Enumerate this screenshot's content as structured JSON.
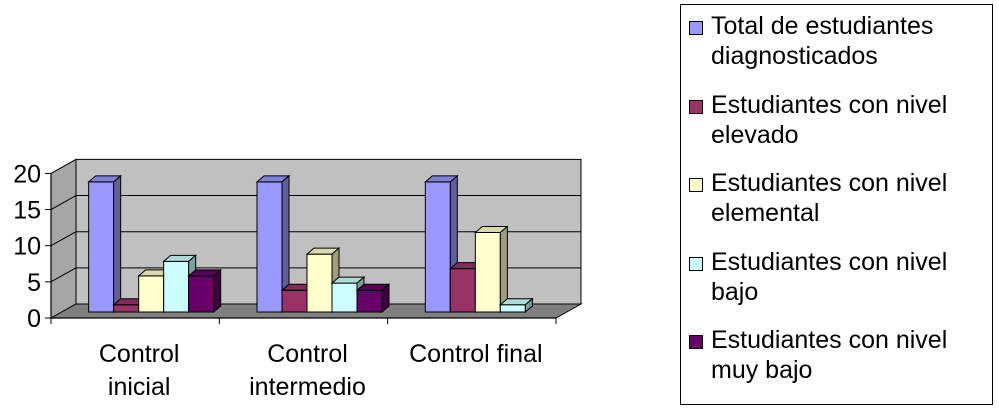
{
  "chart_data": {
    "type": "bar",
    "categories": [
      "Control inicial",
      "Control intermedio",
      "Control final"
    ],
    "category_lines": [
      [
        "Control",
        "inicial"
      ],
      [
        "Control",
        "intermedio"
      ],
      [
        "Control final"
      ]
    ],
    "series": [
      {
        "name": "Total de estudiantes diagnosticados",
        "values": [
          18,
          18,
          18
        ]
      },
      {
        "name": "Estudiantes con nivel elevado",
        "values": [
          1,
          3,
          6
        ]
      },
      {
        "name": "Estudiantes con nivel elemental",
        "values": [
          5,
          8,
          11
        ]
      },
      {
        "name": "Estudiantes con nivel bajo",
        "values": [
          7,
          4,
          1
        ]
      },
      {
        "name": "Estudiantes con nivel muy bajo",
        "values": [
          5,
          3,
          0
        ]
      }
    ],
    "legend_lines": [
      [
        "Total de estudiantes",
        "diagnosticados"
      ],
      [
        "Estudiantes con nivel",
        "elevado"
      ],
      [
        "Estudiantes con nivel",
        "elemental"
      ],
      [
        "Estudiantes con nivel",
        "bajo"
      ],
      [
        "Estudiantes con nivel",
        "muy bajo"
      ]
    ],
    "colors": [
      "#9999ff",
      "#993366",
      "#ffffcc",
      "#ccffff",
      "#660066"
    ],
    "yticks": [
      "0",
      "5",
      "10",
      "15",
      "20"
    ],
    "ylim": [
      0,
      20
    ],
    "grid": true,
    "legend_position": "right",
    "style": "3d-clustered-column"
  }
}
